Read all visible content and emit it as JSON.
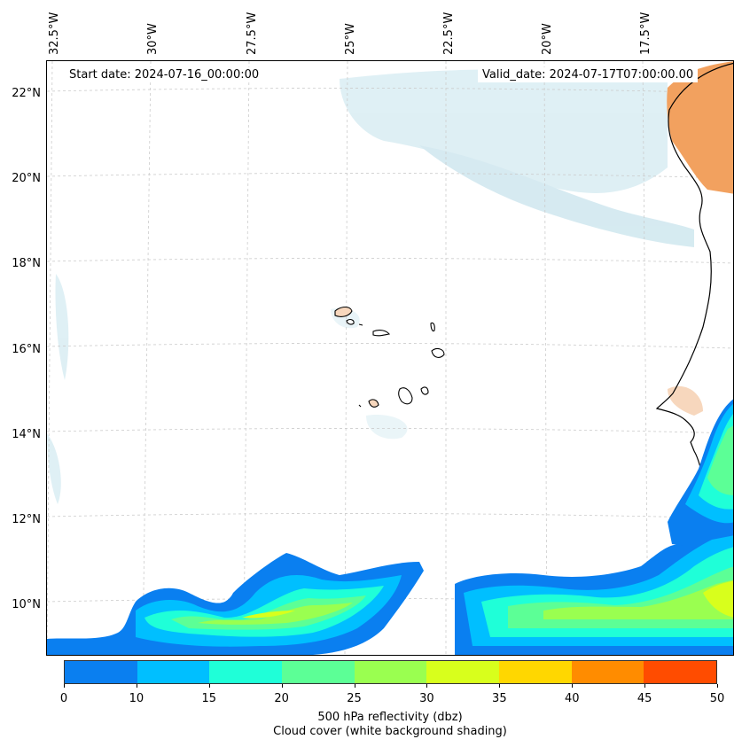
{
  "map": {
    "start_date": "Start date: 2024-07-16_00:00:00",
    "valid_date": "Valid_date: 2024-07-17T07:00:00.00",
    "lon_labels": [
      "32.5°W",
      "30°W",
      "27.5°W",
      "25°W",
      "22.5°W",
      "20°W",
      "17.5°W"
    ],
    "lat_labels": [
      "22°N",
      "20°N",
      "18°N",
      "16°N",
      "14°N",
      "12°N",
      "10°N"
    ]
  },
  "colorbar": {
    "ticks": [
      "0",
      "10",
      "15",
      "20",
      "25",
      "30",
      "35",
      "40",
      "45",
      "50"
    ],
    "colors": [
      "#0a7ff0",
      "#00bfff",
      "#1fffd8",
      "#5cff96",
      "#9aff50",
      "#d8ff1c",
      "#ffd700",
      "#ff8c00",
      "#ff4c00"
    ],
    "label_line1": "500 hPa reflectivity (dbz)",
    "label_line2": "Cloud cover (white background shading)"
  },
  "colors": {
    "land_hot": "#f2a15f",
    "cloud": "#d9edf3",
    "grid": "#cccccc"
  }
}
